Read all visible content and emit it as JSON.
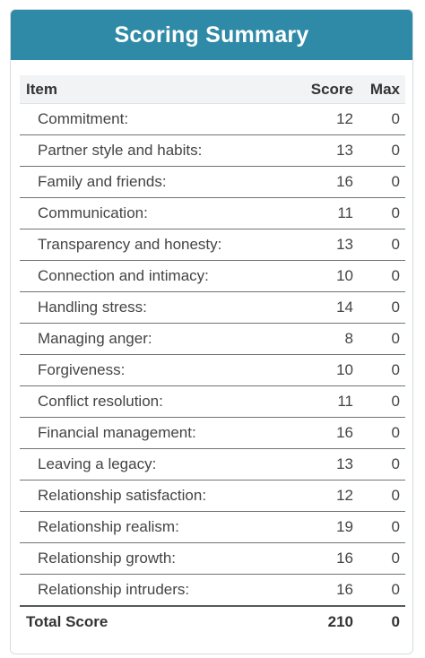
{
  "header": {
    "title": "Scoring Summary"
  },
  "table": {
    "columns": {
      "item": "Item",
      "score": "Score",
      "max": "Max"
    },
    "rows": [
      {
        "item": "Commitment:",
        "score": "12",
        "max": "0"
      },
      {
        "item": "Partner style and habits:",
        "score": "13",
        "max": "0"
      },
      {
        "item": "Family and friends:",
        "score": "16",
        "max": "0"
      },
      {
        "item": "Communication:",
        "score": "11",
        "max": "0"
      },
      {
        "item": "Transparency and honesty:",
        "score": "13",
        "max": "0"
      },
      {
        "item": "Connection and intimacy:",
        "score": "10",
        "max": "0"
      },
      {
        "item": "Handling stress:",
        "score": "14",
        "max": "0"
      },
      {
        "item": "Managing anger:",
        "score": "8",
        "max": "0"
      },
      {
        "item": "Forgiveness:",
        "score": "10",
        "max": "0"
      },
      {
        "item": "Conflict resolution:",
        "score": "11",
        "max": "0"
      },
      {
        "item": "Financial management:",
        "score": "16",
        "max": "0"
      },
      {
        "item": "Leaving a legacy:",
        "score": "13",
        "max": "0"
      },
      {
        "item": "Relationship satisfaction:",
        "score": "12",
        "max": "0"
      },
      {
        "item": "Relationship realism:",
        "score": "19",
        "max": "0"
      },
      {
        "item": "Relationship growth:",
        "score": "16",
        "max": "0"
      },
      {
        "item": "Relationship intruders:",
        "score": "16",
        "max": "0"
      }
    ],
    "total": {
      "item": "Total Score",
      "score": "210",
      "max": "0"
    }
  },
  "colors": {
    "header_bg": "#2f8aa7",
    "header_text": "#ffffff"
  }
}
